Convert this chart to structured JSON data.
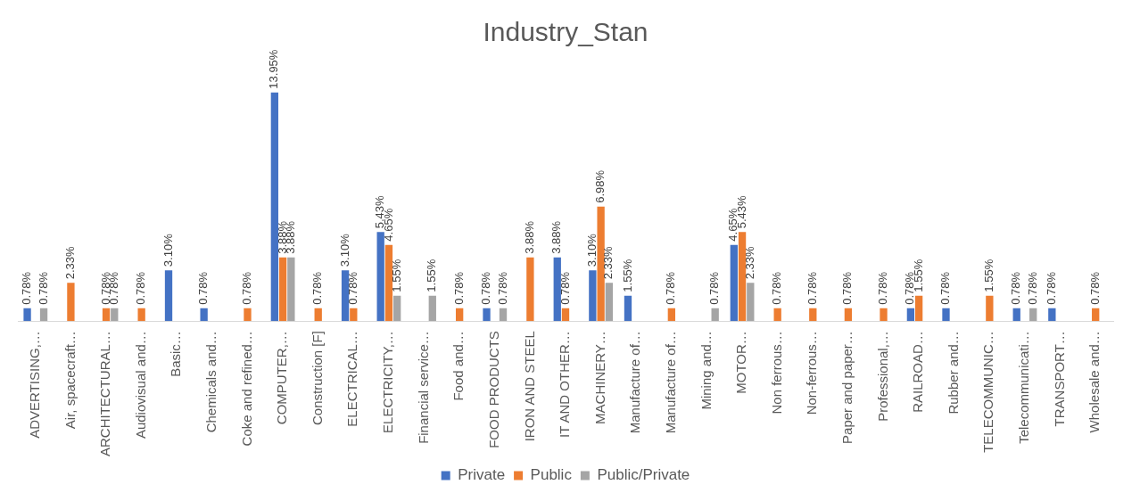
{
  "chart_data": {
    "type": "bar",
    "title": "Industry_Stan",
    "categories": [
      "ADVERTISING,…",
      "Air, spacecraft…",
      "ARCHITECTURAL…",
      "Audiovisual and…",
      "Basic…",
      "Chemicals and…",
      "Coke and refined…",
      "COMPUTER,…",
      "Construction [F]",
      "ELECTRICAL…",
      "ELECTRICITY,…",
      "Financial service…",
      "Food and…",
      "FOOD PRODUCTS",
      "IRON AND STEEL",
      "IT AND OTHER…",
      "MACHINERY…",
      "Manufacture of…",
      "Manufacture of…",
      "Mining and…",
      "MOTOR…",
      "Non ferrous…",
      "Non-ferrous…",
      "Paper and paper…",
      "Professional,…",
      "RAILROAD…",
      "Rubber and…",
      "TELECOMMUNIC…",
      "Telecommunicati…",
      "TRANSPORT…",
      "Wholesale and…"
    ],
    "series": [
      {
        "name": "Private",
        "color": "#4472c4",
        "values": [
          0.78,
          null,
          null,
          null,
          3.1,
          0.78,
          null,
          13.95,
          null,
          3.1,
          5.43,
          null,
          null,
          0.78,
          null,
          3.88,
          3.1,
          1.55,
          null,
          null,
          4.65,
          null,
          null,
          null,
          null,
          0.78,
          0.78,
          null,
          0.78,
          0.78,
          null
        ],
        "value_labels": [
          "0.78%",
          null,
          null,
          null,
          "3.10%",
          "0.78%",
          null,
          "13.95%",
          null,
          "3.10%",
          "5.43%",
          null,
          null,
          "0.78%",
          null,
          "3.88%",
          "3.10%",
          "1.55%",
          null,
          null,
          "4.65%",
          null,
          null,
          null,
          null,
          "0.78%",
          "0.78%",
          null,
          "0.78%",
          "0.78%",
          null
        ]
      },
      {
        "name": "Public",
        "color": "#ed7d31",
        "values": [
          null,
          2.33,
          0.78,
          0.78,
          null,
          null,
          0.78,
          3.88,
          0.78,
          0.78,
          4.65,
          null,
          0.78,
          null,
          3.88,
          0.78,
          6.98,
          null,
          0.78,
          null,
          5.43,
          0.78,
          0.78,
          0.78,
          0.78,
          1.55,
          null,
          1.55,
          null,
          null,
          0.78
        ],
        "value_labels": [
          null,
          "2.33%",
          "0.78%",
          "0.78%",
          null,
          null,
          "0.78%",
          "3.88%",
          "0.78%",
          "0.78%",
          "4.65%",
          null,
          "0.78%",
          null,
          "3.88%",
          "0.78%",
          "6.98%",
          null,
          "0.78%",
          null,
          "5.43%",
          "0.78%",
          "0.78%",
          "0.78%",
          "0.78%",
          "1.55%",
          null,
          "1.55%",
          null,
          null,
          "0.78%"
        ]
      },
      {
        "name": "Public/Private",
        "color": "#a5a5a5",
        "values": [
          0.78,
          null,
          0.78,
          null,
          null,
          null,
          null,
          3.88,
          null,
          null,
          1.55,
          1.55,
          null,
          0.78,
          null,
          null,
          2.33,
          null,
          null,
          0.78,
          2.33,
          null,
          null,
          null,
          null,
          null,
          null,
          null,
          0.78,
          null,
          null
        ],
        "value_labels": [
          "0.78%",
          null,
          "0.78%",
          null,
          null,
          null,
          null,
          "3.88%",
          null,
          null,
          "1.55%",
          "1.55%",
          null,
          "0.78%",
          null,
          null,
          "2.33%",
          null,
          null,
          "0.78%",
          "2.33%",
          null,
          null,
          null,
          null,
          null,
          null,
          null,
          "0.78%",
          null,
          null
        ]
      }
    ],
    "legend": "bottom",
    "grid": false
  }
}
